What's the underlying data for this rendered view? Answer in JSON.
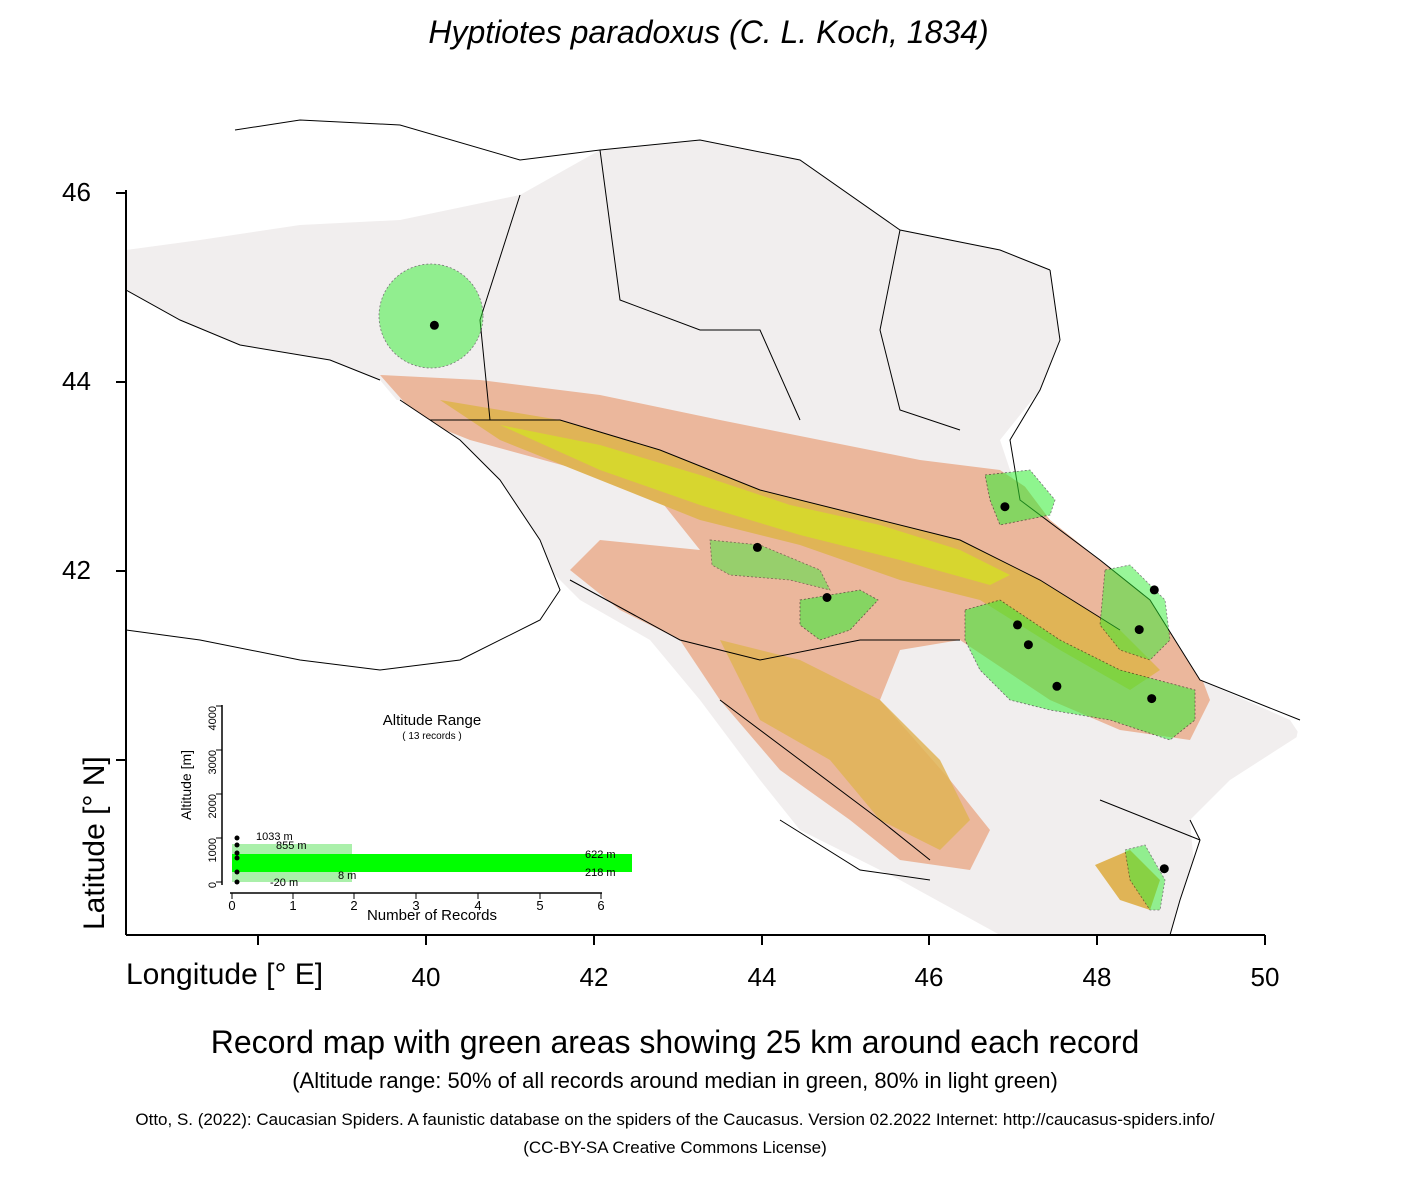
{
  "title": "Hyptiotes paradoxus (C. L. Koch, 1834)",
  "axes": {
    "ylabel": "Latitude [° N]",
    "xlabel": "Longitude [° E]",
    "yticks": [
      "46",
      "44",
      "42"
    ],
    "xticks": [
      "40",
      "42",
      "44",
      "46",
      "48",
      "50"
    ]
  },
  "records": [
    {
      "lon": 40.1,
      "lat": 44.6
    },
    {
      "lon": 43.95,
      "lat": 42.25
    },
    {
      "lon": 44.78,
      "lat": 41.72
    },
    {
      "lon": 46.9,
      "lat": 42.68
    },
    {
      "lon": 47.05,
      "lat": 41.43
    },
    {
      "lon": 47.18,
      "lat": 41.22
    },
    {
      "lon": 47.52,
      "lat": 40.78
    },
    {
      "lon": 48.5,
      "lat": 41.38
    },
    {
      "lon": 48.68,
      "lat": 41.8
    },
    {
      "lon": 48.65,
      "lat": 40.65
    },
    {
      "lon": 48.8,
      "lat": 38.85
    }
  ],
  "inset": {
    "title": "Altitude Range",
    "subtitle": "( 13 records )",
    "ylabel": "Altitude [m]",
    "xlabel": "Number of Records",
    "yticks": [
      "0",
      "1000",
      "2000",
      "3000",
      "4000"
    ],
    "xticks": [
      "0",
      "1",
      "2",
      "3",
      "4",
      "5",
      "6"
    ],
    "labels": {
      "max": "1033  m",
      "p90": "855  m",
      "p75": "622  m",
      "p25": "218  m",
      "p10": "8  m",
      "min": "-20  m"
    },
    "chart_data": {
      "type": "bar",
      "ylabel": "Altitude [m]",
      "xlabel": "Number of Records",
      "ylim": [
        0,
        4000
      ],
      "xlim": [
        0,
        6
      ],
      "altitude_range_80_pct": [
        8,
        855
      ],
      "altitude_range_50_pct": [
        218,
        622
      ],
      "min": -20,
      "max": 1033
    }
  },
  "colors": {
    "buffer_green": "#33ee33",
    "light_green": "#aaf0aa",
    "lowland": "#f3ebe8",
    "foothill": "#e9b59a",
    "mountain": "#e0b050",
    "high": "#d6e020"
  },
  "caption": "Record map with green areas showing 25 km around each record",
  "subcaption": "(Altitude range: 50% of all records around median in green, 80% in light green)",
  "citation": "Otto, S. (2022): Caucasian Spiders. A faunistic database on the spiders of the Caucasus. Version 02.2022 Internet: http://caucasus-spiders.info/",
  "license": "(CC-BY-SA Creative Commons License)"
}
